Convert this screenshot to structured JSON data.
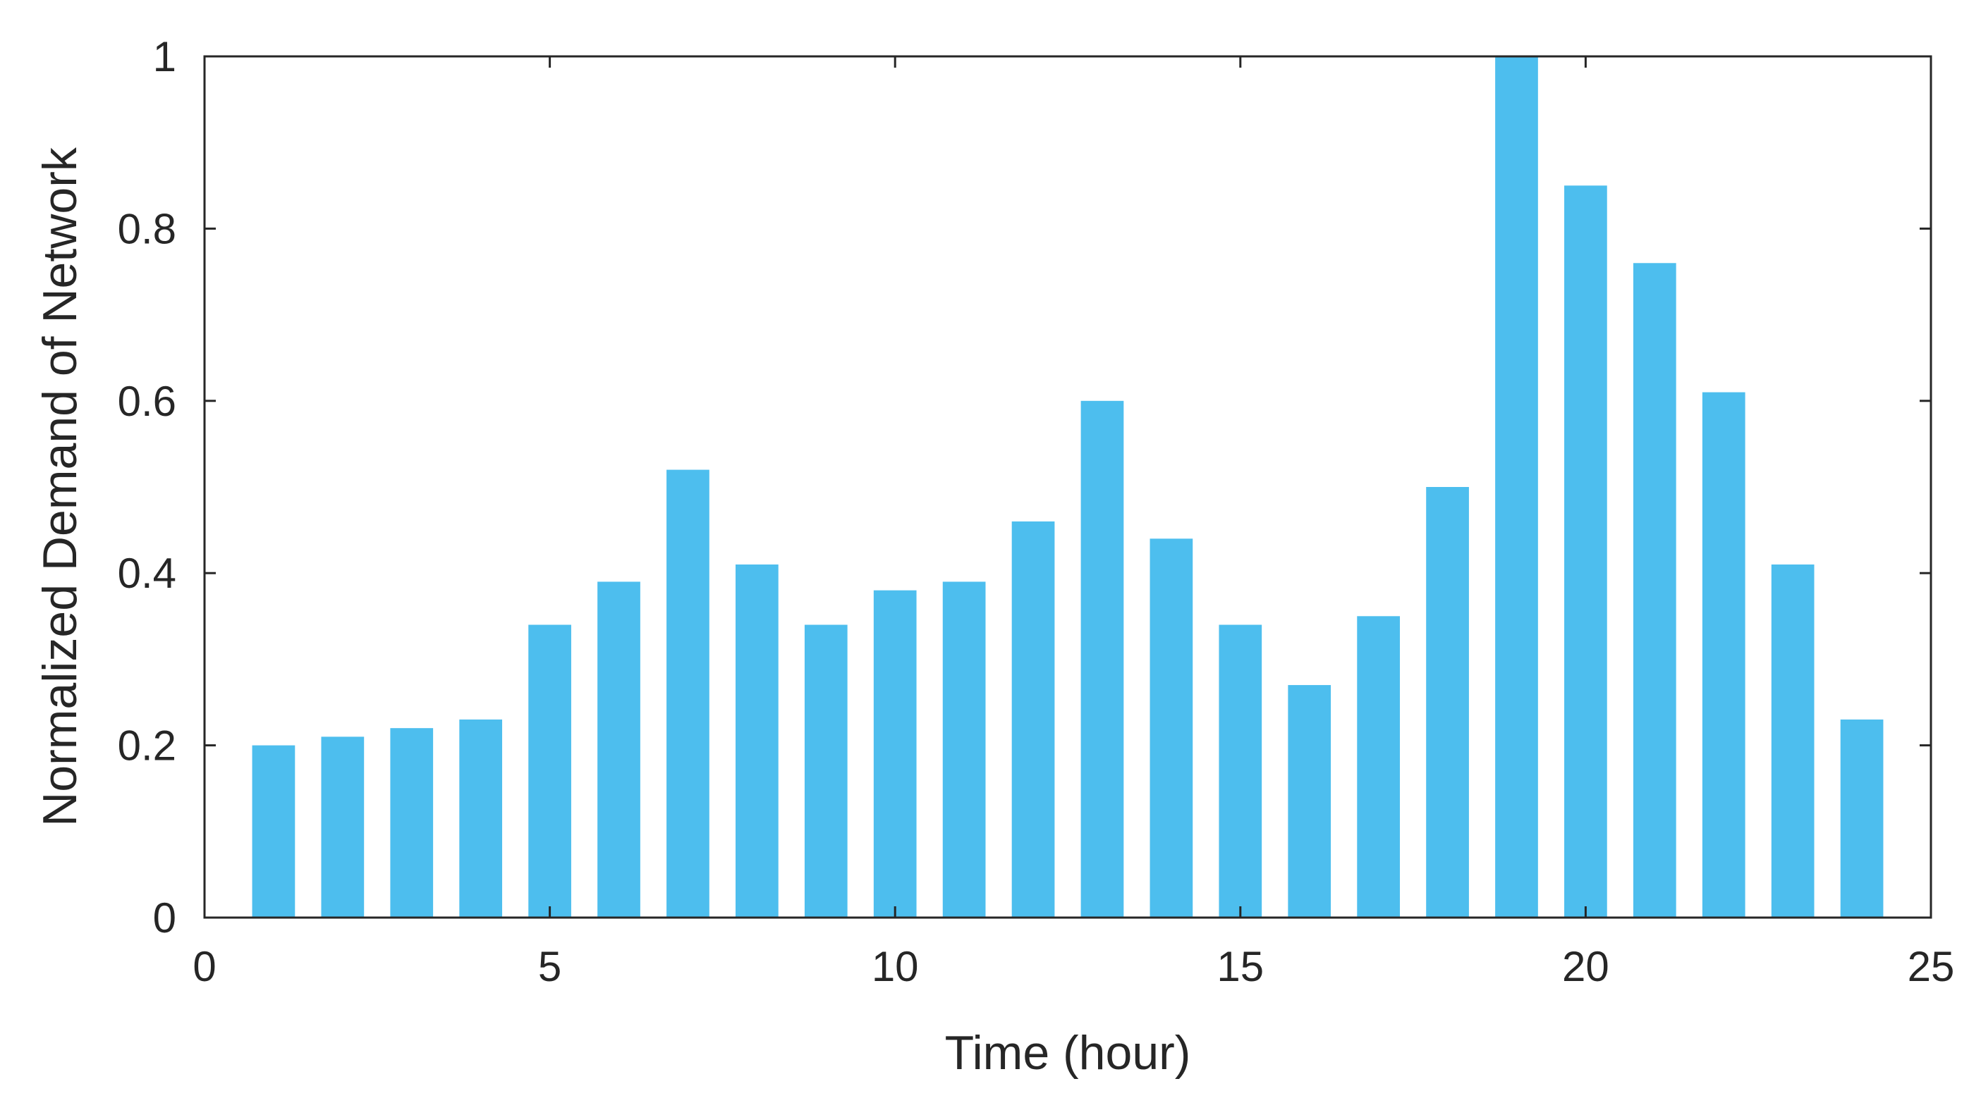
{
  "chart_data": {
    "type": "bar",
    "title": "",
    "xlabel": "Time (hour)",
    "ylabel": "Normalized Demand of Network",
    "xlim": [
      0,
      25
    ],
    "ylim": [
      0,
      1
    ],
    "x_ticks": [
      "0",
      "5",
      "10",
      "15",
      "20",
      "25"
    ],
    "y_ticks": [
      "0",
      "0.2",
      "0.4",
      "0.6",
      "0.8",
      "1"
    ],
    "grid": false,
    "bar_color": "#4DBEEE",
    "x": [
      1,
      2,
      3,
      4,
      5,
      6,
      7,
      8,
      9,
      10,
      11,
      12,
      13,
      14,
      15,
      16,
      17,
      18,
      19,
      20,
      21,
      22,
      23,
      24
    ],
    "values": [
      0.2,
      0.21,
      0.22,
      0.23,
      0.34,
      0.39,
      0.52,
      0.41,
      0.34,
      0.38,
      0.39,
      0.46,
      0.6,
      0.44,
      0.34,
      0.27,
      0.35,
      0.5,
      1.0,
      0.85,
      0.76,
      0.61,
      0.41,
      0.23
    ]
  }
}
